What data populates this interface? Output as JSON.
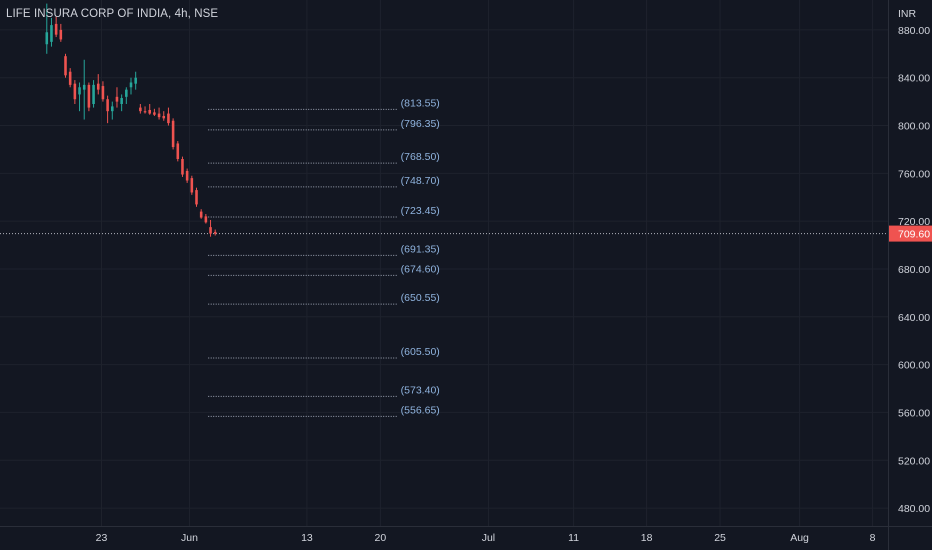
{
  "header": {
    "symbol_title": "LIFE INSURA CORP OF INDIA, 4h, NSE",
    "currency": "INR"
  },
  "colors": {
    "background": "#131722",
    "grid": "#1e222d",
    "axis_text": "#d1d4dc",
    "up_candle": "#26a69a",
    "down_candle": "#ef5350",
    "level_line": "#9fa6b6",
    "level_label": "#8fb3de",
    "price_tag": "#ef5350"
  },
  "chart_data": {
    "type": "candlestick",
    "title": "LIFE INSURA CORP OF INDIA, 4h, NSE",
    "ylabel": "INR",
    "ylim": [
      465,
      905
    ],
    "y_ticks": [
      880,
      840,
      800,
      760,
      720,
      680,
      640,
      600,
      560,
      520,
      480
    ],
    "y_tick_labels": [
      "880.00",
      "840.00",
      "800.00",
      "760.00",
      "720.00",
      "680.00",
      "640.00",
      "600.00",
      "560.00",
      "520.00",
      "480.00"
    ],
    "x_ticks": [
      {
        "label": "23",
        "bar": 11.7
      },
      {
        "label": "Jun",
        "bar": 30.5
      },
      {
        "label": "13",
        "bar": 55.6
      },
      {
        "label": "20",
        "bar": 71.3
      },
      {
        "label": "Jul",
        "bar": 94.4
      },
      {
        "label": "11",
        "bar": 112.6
      },
      {
        "label": "18",
        "bar": 128.2
      },
      {
        "label": "25",
        "bar": 143.9
      },
      {
        "label": "Aug",
        "bar": 160.9
      },
      {
        "label": "8",
        "bar": 176.5
      }
    ],
    "x_range_bars": [
      -10,
      179.8
    ],
    "current_price": 709.6,
    "current_price_label": "709.60",
    "candles": [
      {
        "o": 868,
        "h": 902,
        "l": 860,
        "c": 878
      },
      {
        "o": 870,
        "h": 890,
        "l": 866,
        "c": 884
      },
      {
        "o": 885,
        "h": 891,
        "l": 874,
        "c": 876
      },
      {
        "o": 880,
        "h": 885,
        "l": 870,
        "c": 872
      },
      {
        "o": 858,
        "h": 860,
        "l": 840,
        "c": 842
      },
      {
        "o": 845,
        "h": 848,
        "l": 832,
        "c": 834
      },
      {
        "o": 835,
        "h": 838,
        "l": 818,
        "c": 822
      },
      {
        "o": 826,
        "h": 836,
        "l": 812,
        "c": 832
      },
      {
        "o": 830,
        "h": 855,
        "l": 805,
        "c": 834
      },
      {
        "o": 834,
        "h": 836,
        "l": 812,
        "c": 815
      },
      {
        "o": 818,
        "h": 838,
        "l": 815,
        "c": 834
      },
      {
        "o": 835,
        "h": 843,
        "l": 826,
        "c": 830
      },
      {
        "o": 833,
        "h": 837,
        "l": 820,
        "c": 822
      },
      {
        "o": 822,
        "h": 825,
        "l": 802,
        "c": 812
      },
      {
        "o": 812,
        "h": 820,
        "l": 805,
        "c": 816
      },
      {
        "o": 824,
        "h": 832,
        "l": 815,
        "c": 820
      },
      {
        "o": 818,
        "h": 826,
        "l": 812,
        "c": 823
      },
      {
        "o": 824,
        "h": 832,
        "l": 818,
        "c": 830
      },
      {
        "o": 832,
        "h": 840,
        "l": 826,
        "c": 836
      },
      {
        "o": 835,
        "h": 845,
        "l": 830,
        "c": 840
      },
      {
        "o": 815,
        "h": 818,
        "l": 810,
        "c": 812
      },
      {
        "o": 812,
        "h": 816,
        "l": 810,
        "c": 811
      },
      {
        "o": 813,
        "h": 818,
        "l": 809,
        "c": 810
      },
      {
        "o": 811,
        "h": 814,
        "l": 808,
        "c": 809
      },
      {
        "o": 810,
        "h": 815,
        "l": 805,
        "c": 807
      },
      {
        "o": 808,
        "h": 812,
        "l": 804,
        "c": 806
      },
      {
        "o": 810,
        "h": 815,
        "l": 800,
        "c": 802
      },
      {
        "o": 804,
        "h": 806,
        "l": 780,
        "c": 782
      },
      {
        "o": 785,
        "h": 787,
        "l": 770,
        "c": 772
      },
      {
        "o": 772,
        "h": 774,
        "l": 757,
        "c": 759
      },
      {
        "o": 762,
        "h": 764,
        "l": 752,
        "c": 754
      },
      {
        "o": 756,
        "h": 758,
        "l": 742,
        "c": 744
      },
      {
        "o": 746,
        "h": 748,
        "l": 732,
        "c": 734
      },
      {
        "o": 728,
        "h": 730,
        "l": 722,
        "c": 723
      },
      {
        "o": 724,
        "h": 726,
        "l": 718,
        "c": 719
      },
      {
        "o": 715,
        "h": 721,
        "l": 707,
        "c": 709.6
      },
      {
        "o": 711,
        "h": 713,
        "l": 708,
        "c": 709.6
      }
    ],
    "levels": [
      {
        "value": 813.55,
        "label": "(813.55)"
      },
      {
        "value": 796.35,
        "label": "(796.35)"
      },
      {
        "value": 768.5,
        "label": "(768.50)"
      },
      {
        "value": 748.7,
        "label": "(748.70)"
      },
      {
        "value": 723.45,
        "label": "(723.45)"
      },
      {
        "value": 691.35,
        "label": "(691.35)"
      },
      {
        "value": 674.6,
        "label": "(674.60)"
      },
      {
        "value": 650.55,
        "label": "(650.55)"
      },
      {
        "value": 605.5,
        "label": "(605.50)"
      },
      {
        "value": 573.4,
        "label": "(573.40)"
      },
      {
        "value": 556.65,
        "label": "(556.65)"
      }
    ]
  }
}
